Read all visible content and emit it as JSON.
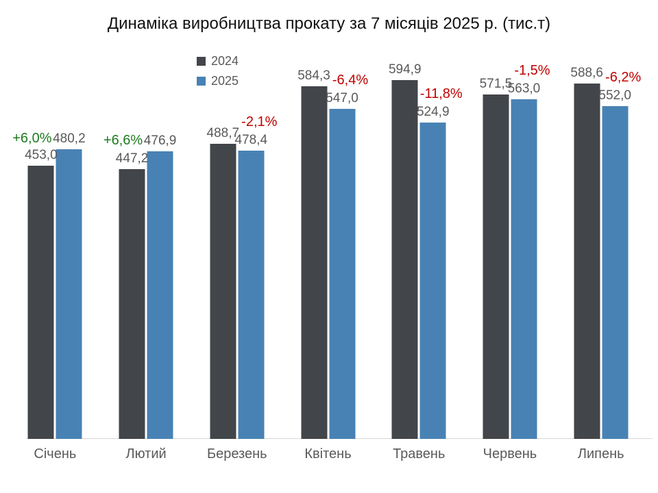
{
  "chart_data": {
    "type": "bar",
    "title": "Динаміка виробництва прокату за 7 місяців 2025 р. (тис.т)",
    "categories": [
      "Січень",
      "Лютий",
      "Березень",
      "Квітень",
      "Травень",
      "Червень",
      "Липень"
    ],
    "series": [
      {
        "name": "2024",
        "color": "#424549",
        "values": [
          453.0,
          447.2,
          488.7,
          584.3,
          594.9,
          571.5,
          588.6
        ],
        "value_labels": [
          "453,0",
          "447,2",
          "488,7",
          "584,3",
          "594,9",
          "571,5",
          "588,6"
        ]
      },
      {
        "name": "2025",
        "color": "#4882b4",
        "values": [
          480.2,
          476.9,
          478.4,
          547.0,
          524.9,
          563.0,
          552.0
        ],
        "value_labels": [
          "480,2",
          "476,9",
          "478,4",
          "547,0",
          "524,9",
          "563,0",
          "552,0"
        ]
      }
    ],
    "change_labels": [
      "+6,0%",
      "+6,6%",
      "-2,1%",
      "-6,4%",
      "-11,8%",
      "-1,5%",
      "-6,2%"
    ],
    "change_positive_color": "#1e7a1e",
    "change_negative_color": "#c00000",
    "value_label_color": "#595959",
    "axis_color": "#d9d9d9",
    "grid": false,
    "legend_position": "top-left-of-center",
    "ylim": [
      0,
      650
    ]
  }
}
